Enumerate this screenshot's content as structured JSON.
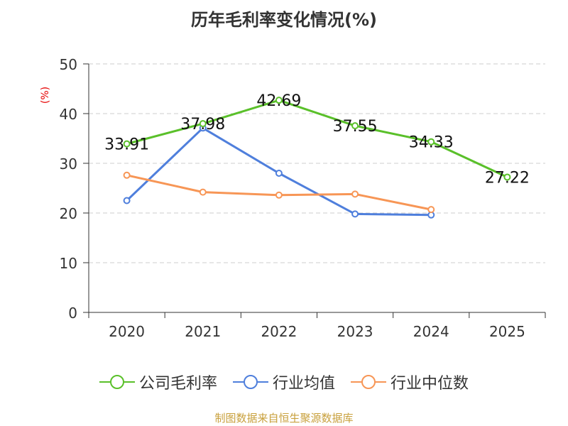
{
  "chart_data": {
    "type": "line",
    "title": "历年毛利率变化情况(%)",
    "ylabel": "(%)",
    "xlabel": "",
    "categories": [
      "2020",
      "2021",
      "2022",
      "2023",
      "2024",
      "2025"
    ],
    "ylim": [
      0,
      50
    ],
    "yticks": [
      "0",
      "10",
      "20",
      "30",
      "40",
      "50"
    ],
    "grid": true,
    "legend_position": "bottom",
    "series": [
      {
        "name": "公司毛利率",
        "color": "#5ac02a",
        "values": [
          33.91,
          37.98,
          42.69,
          37.55,
          34.33,
          27.22
        ],
        "labels": [
          "33.91",
          "37.98",
          "42.69",
          "37.55",
          "34.33",
          "27.22"
        ]
      },
      {
        "name": "行业均值",
        "color": "#4f7fdc",
        "values": [
          22.5,
          37.1,
          28.0,
          19.8,
          19.6,
          null
        ]
      },
      {
        "name": "行业中位数",
        "color": "#f79656",
        "values": [
          27.6,
          24.2,
          23.6,
          23.8,
          20.7,
          null
        ]
      }
    ]
  },
  "source": "制图数据来自恒生聚源数据库"
}
